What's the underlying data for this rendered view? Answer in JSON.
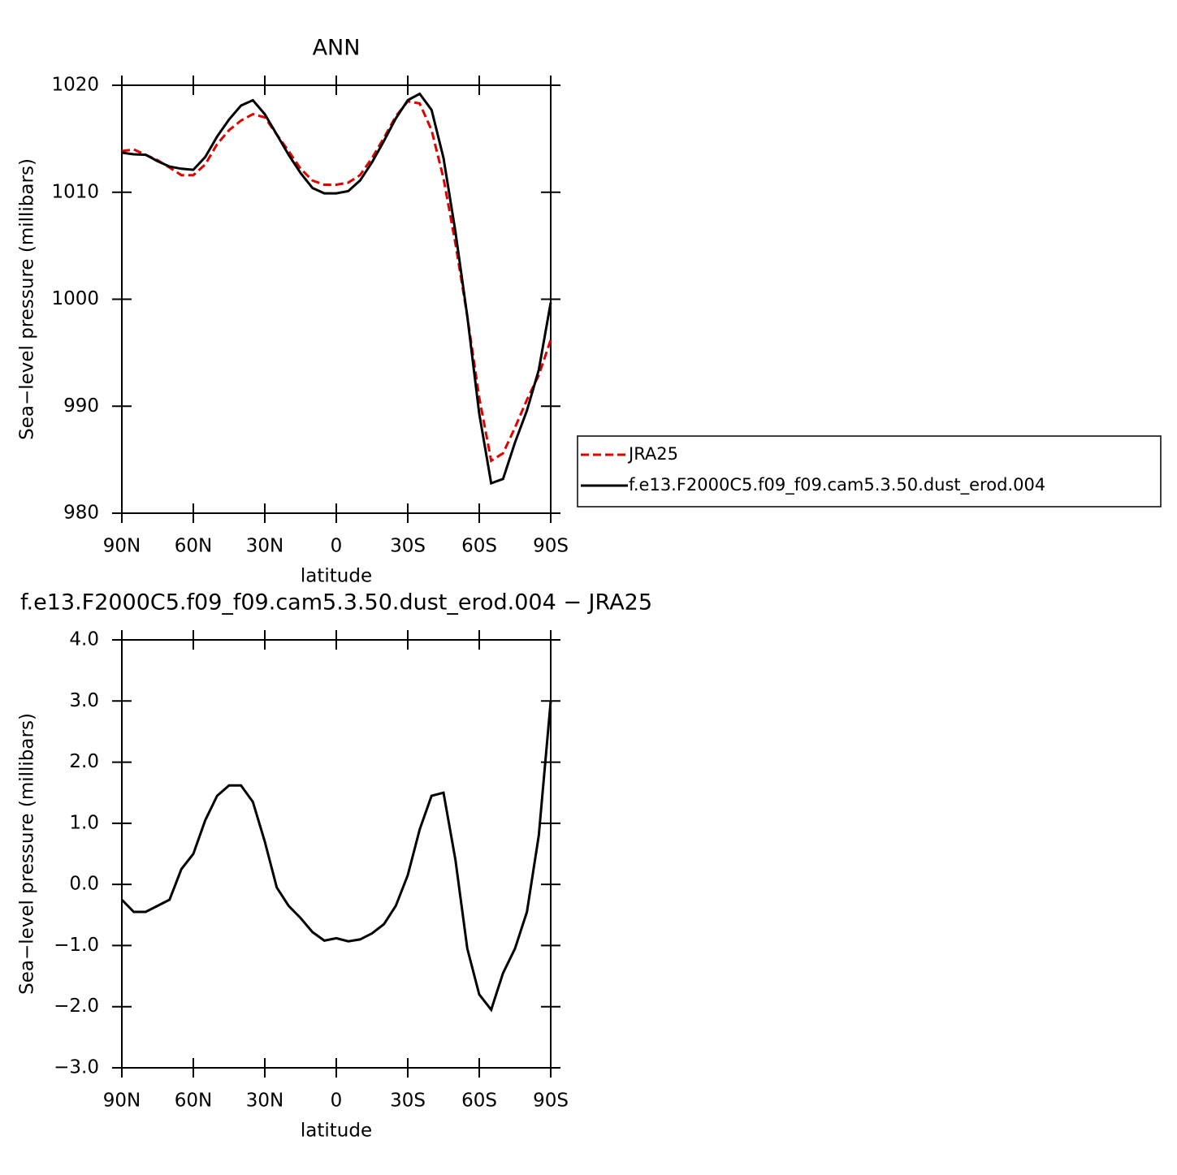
{
  "chart_data": [
    {
      "type": "line",
      "title": "ANN",
      "x_label": "latitude",
      "y_label": "Sea−level pressure (millibars)",
      "x": [
        90,
        85,
        80,
        75,
        70,
        65,
        60,
        55,
        50,
        45,
        40,
        35,
        30,
        25,
        20,
        15,
        10,
        5,
        0,
        -5,
        -10,
        -15,
        -20,
        -25,
        -30,
        -35,
        -40,
        -45,
        -50,
        -55,
        -60,
        -65,
        -70,
        -75,
        -80,
        -85,
        -90
      ],
      "series": [
        {
          "name": "JRA25",
          "color": "#e00000",
          "dash": true,
          "values": [
            1013.85,
            1014.0,
            1013.5,
            1013.0,
            1012.3,
            1011.6,
            1011.6,
            1012.6,
            1014.5,
            1015.8,
            1016.7,
            1017.3,
            1017.0,
            1015.4,
            1013.85,
            1012.2,
            1011.1,
            1010.7,
            1010.7,
            1010.9,
            1011.6,
            1013.2,
            1015.1,
            1017.1,
            1018.5,
            1018.3,
            1015.8,
            1011.3,
            1005.2,
            998.4,
            990.8,
            984.9,
            985.6,
            988.0,
            990.6,
            992.9,
            996.2
          ]
        },
        {
          "name": "f.e13.F2000C5.f09_f09.cam5.3.50.dust_erod.004",
          "color": "#000000",
          "dash": false,
          "values": [
            1013.7,
            1013.55,
            1013.5,
            1012.9,
            1012.4,
            1012.2,
            1012.1,
            1013.3,
            1015.2,
            1016.8,
            1018.1,
            1018.6,
            1017.3,
            1015.4,
            1013.5,
            1011.8,
            1010.4,
            1009.9,
            1009.9,
            1010.1,
            1011.1,
            1012.8,
            1014.8,
            1016.9,
            1018.6,
            1019.2,
            1017.7,
            1013.2,
            1006.3,
            998.4,
            989.3,
            982.8,
            983.2,
            986.6,
            989.6,
            993.4,
            999.7
          ]
        }
      ],
      "xlim": [
        90,
        -90
      ],
      "xticks": [
        {
          "value": 90,
          "label": "90N"
        },
        {
          "value": 60,
          "label": "60N"
        },
        {
          "value": 30,
          "label": "30N"
        },
        0,
        {
          "value": -30,
          "label": "30S"
        },
        {
          "value": -60,
          "label": "60S"
        },
        {
          "value": -90,
          "label": "90S"
        }
      ],
      "ylim": [
        980,
        1020
      ],
      "yticks": [
        980,
        990,
        1000,
        1010,
        1020
      ],
      "legend": "right"
    },
    {
      "type": "line",
      "title": "f.e13.F2000C5.f09_f09.cam5.3.50.dust_erod.004 − JRA25",
      "x_label": "latitude",
      "y_label": "Sea−level pressure (millibars)",
      "x": [
        90,
        85,
        80,
        75,
        70,
        65,
        60,
        55,
        50,
        45,
        40,
        35,
        30,
        25,
        20,
        15,
        10,
        5,
        0,
        -5,
        -10,
        -15,
        -20,
        -25,
        -30,
        -35,
        -40,
        -45,
        -50,
        -55,
        -60,
        -65,
        -70,
        -75,
        -80,
        -85,
        -90
      ],
      "values": [
        -0.25,
        -0.45,
        -0.45,
        -0.35,
        -0.25,
        0.25,
        0.5,
        1.05,
        1.45,
        1.62,
        1.62,
        1.35,
        0.7,
        -0.05,
        -0.35,
        -0.55,
        -0.78,
        -0.92,
        -0.88,
        -0.93,
        -0.9,
        -0.8,
        -0.65,
        -0.35,
        0.15,
        0.9,
        1.45,
        1.5,
        0.4,
        -1.05,
        -1.8,
        -2.05,
        -1.45,
        -1.05,
        -0.45,
        0.8,
        3.0
      ],
      "color": "#000000",
      "xlim": [
        90,
        -90
      ],
      "xticks": [
        {
          "value": 90,
          "label": "90N"
        },
        {
          "value": 60,
          "label": "60N"
        },
        {
          "value": 30,
          "label": "30N"
        },
        0,
        {
          "value": -30,
          "label": "30S"
        },
        {
          "value": -60,
          "label": "60S"
        },
        {
          "value": -90,
          "label": "90S"
        }
      ],
      "ylim": [
        -3,
        4
      ],
      "yticks": [
        {
          "value": -3,
          "label": "−3.0"
        },
        {
          "value": -2,
          "label": "−2.0"
        },
        {
          "value": -1,
          "label": "−1.0"
        },
        {
          "value": 0,
          "label": "0.0"
        },
        {
          "value": 1,
          "label": "1.0"
        },
        {
          "value": 2,
          "label": "2.0"
        },
        {
          "value": 3,
          "label": "3.0"
        },
        {
          "value": 4,
          "label": "4.0"
        }
      ]
    }
  ]
}
